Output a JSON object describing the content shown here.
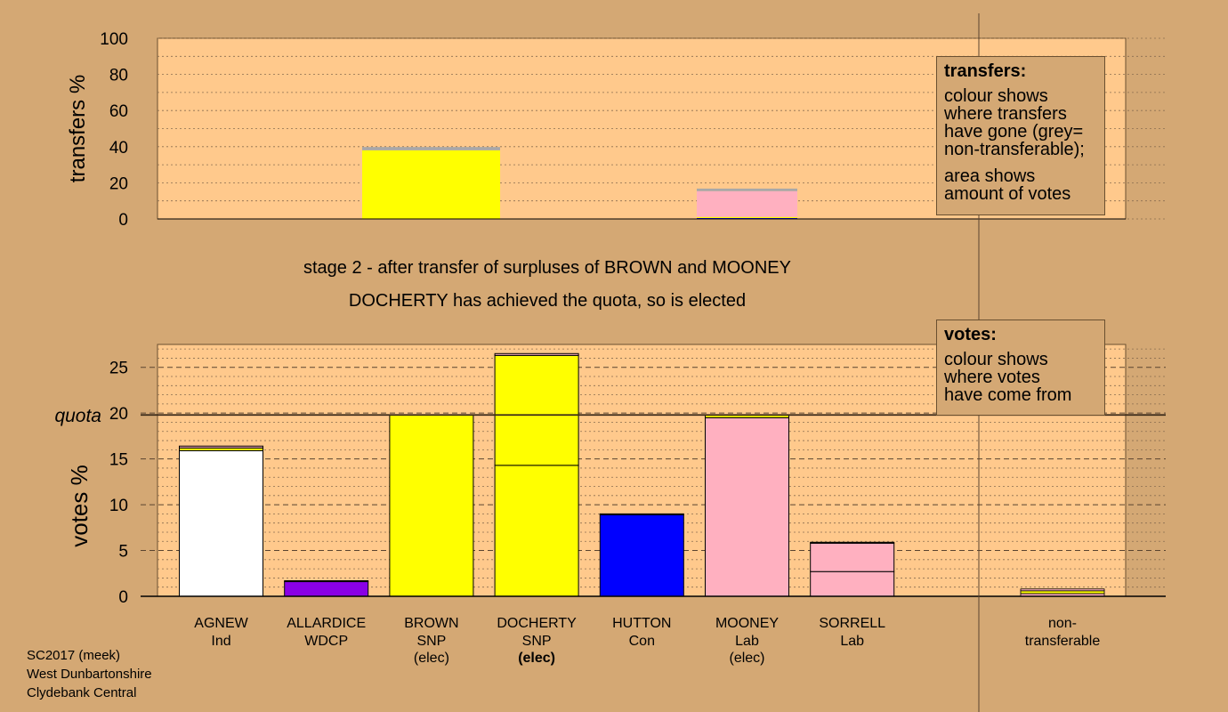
{
  "stage": {
    "line1": "stage 2 - after transfer of surpluses of BROWN and MOONEY",
    "line2": "DOCHERTY has achieved the quota, so is elected"
  },
  "footer": [
    "SC2017 (meek)",
    "West Dunbartonshire",
    "Clydebank Central"
  ],
  "transfers_box": {
    "title": "transfers:",
    "lines_a": [
      "colour shows",
      "where transfers",
      "have gone (grey=",
      "non-transferable);"
    ],
    "lines_b": [
      "area shows",
      "amount of votes"
    ]
  },
  "votes_box": {
    "title": "votes:",
    "lines": [
      "colour shows",
      "where votes",
      "have come from"
    ]
  },
  "colors": {
    "background": "#d4a874",
    "plot": "#ffc98c",
    "Ind": "#ffffff",
    "WDCP": "#8a00e6",
    "SNP": "#ffff00",
    "Con": "#0000ff",
    "Lab": "#ffb0c0",
    "nontransferable": "#a8a8a8"
  },
  "chart_data": [
    {
      "type": "bar",
      "ylabel": "transfers %",
      "ylim": [
        0,
        100
      ],
      "yticks": [
        0,
        20,
        40,
        60,
        80,
        100
      ],
      "grid": true,
      "bars": [
        {
          "name": "BROWN",
          "width": 20.7,
          "segments": [
            {
              "party": "SNP",
              "value": 38.0
            },
            {
              "party": "nontransferable",
              "value": 1.8
            }
          ]
        },
        {
          "name": "MOONEY",
          "width": 19.7,
          "segments": [
            {
              "party": "Con",
              "value": 0.5
            },
            {
              "party": "SNP",
              "value": 0.6
            },
            {
              "party": "Lab",
              "value": 14.3
            },
            {
              "party": "nontransferable",
              "value": 1.4
            }
          ]
        }
      ]
    },
    {
      "type": "bar",
      "ylabel": "votes %",
      "ylim": [
        0,
        27.5
      ],
      "yticks": [
        0,
        5,
        10,
        15,
        20,
        25
      ],
      "quota": 19.8,
      "quota_label": "quota",
      "grid": true,
      "candidates": [
        {
          "name": "AGNEW",
          "party": "Ind",
          "status": "",
          "segments": [
            {
              "party": "Ind",
              "value": 15.9
            },
            {
              "party": "SNP",
              "value": 0.3
            },
            {
              "party": "Lab",
              "value": 0.2
            }
          ]
        },
        {
          "name": "ALLARDICE",
          "party": "WDCP",
          "status": "",
          "segments": [
            {
              "party": "WDCP",
              "value": 1.6
            },
            {
              "party": "SNP",
              "value": 0.1
            }
          ]
        },
        {
          "name": "BROWN",
          "party": "SNP",
          "status": "(elec)",
          "segments": [
            {
              "party": "SNP",
              "value": 19.8
            }
          ]
        },
        {
          "name": "DOCHERTY",
          "party": "SNP",
          "status": "(elec)",
          "segments": [
            {
              "party": "SNP",
              "value": 14.3
            },
            {
              "party": "SNP",
              "value": 12.0
            },
            {
              "party": "Lab",
              "value": 0.2
            }
          ]
        },
        {
          "name": "HUTTON",
          "party": "Con",
          "status": "",
          "segments": [
            {
              "party": "Con",
              "value": 8.9
            },
            {
              "party": "Lab",
              "value": 0.1
            }
          ]
        },
        {
          "name": "MOONEY",
          "party": "Lab",
          "status": "(elec)",
          "segments": [
            {
              "party": "Lab",
              "value": 19.5
            },
            {
              "party": "SNP",
              "value": 0.3
            }
          ]
        },
        {
          "name": "SORRELL",
          "party": "Lab",
          "status": "",
          "segments": [
            {
              "party": "Lab",
              "value": 2.7
            },
            {
              "party": "Lab",
              "value": 3.1
            },
            {
              "party": "SNP",
              "value": 0.1
            }
          ]
        }
      ],
      "nontransferable": {
        "label_lines": [
          "non-",
          "transferable"
        ],
        "segments": [
          {
            "party": "Lab",
            "value": 0.3
          },
          {
            "party": "SNP",
            "value": 0.3
          },
          {
            "party": "Lab",
            "value": 0.2
          }
        ]
      }
    }
  ]
}
